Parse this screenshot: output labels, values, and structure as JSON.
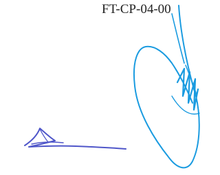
{
  "header": {
    "code": "FT-CP-04-00"
  }
}
